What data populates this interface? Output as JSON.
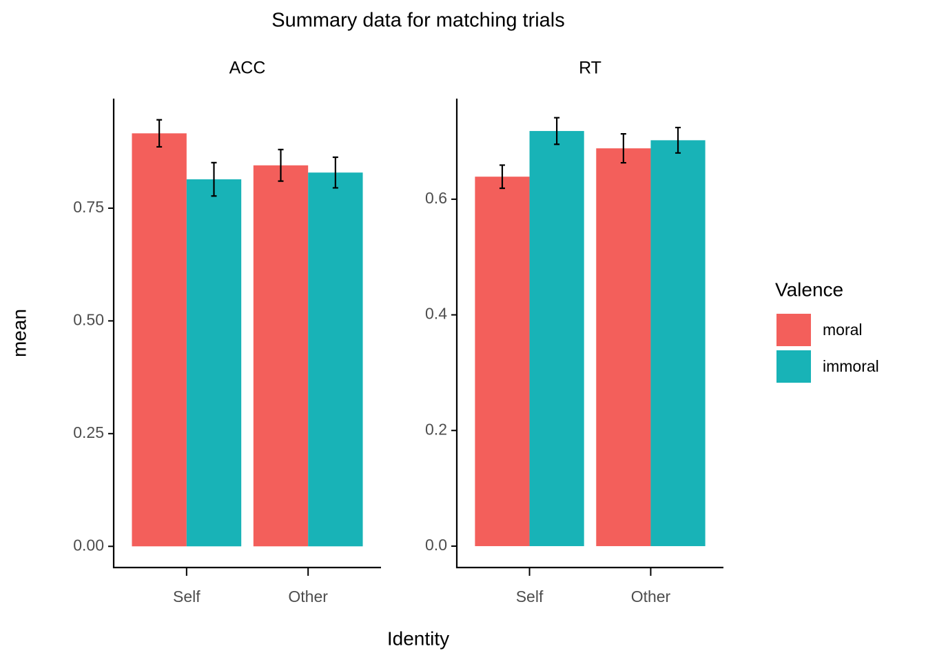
{
  "chart_data": {
    "type": "bar",
    "title": "Summary data for matching trials",
    "xlabel": "Identity",
    "ylabel": "mean",
    "legend_title": "Valence",
    "categories": [
      "Self",
      "Other"
    ],
    "series": [
      {
        "name": "moral",
        "color": "#f35f5b"
      },
      {
        "name": "immoral",
        "color": "#18b3b7"
      }
    ],
    "facets": [
      {
        "title": "ACC",
        "ylim": [
          -0.047,
          0.993
        ],
        "yticks": [
          {
            "value": 0,
            "label": "0.00"
          },
          0.25,
          {
            "value": 0.5,
            "label": "0.50"
          },
          0.75
        ],
        "series": [
          {
            "values": [
              0.916,
              0.845
            ],
            "errors": [
              0.03,
              0.035
            ]
          },
          {
            "values": [
              0.814,
              0.829
            ],
            "errors": [
              0.037,
              0.034
            ]
          }
        ]
      },
      {
        "title": "RT",
        "ylim": [
          -0.037,
          0.774
        ],
        "yticks": [
          {
            "value": 0,
            "label": "0.0"
          },
          0.2,
          0.4,
          0.6
        ],
        "series": [
          {
            "values": [
              0.639,
              0.688
            ],
            "errors": [
              0.02,
              0.025
            ]
          },
          {
            "values": [
              0.718,
              0.702
            ],
            "errors": [
              0.023,
              0.022
            ]
          }
        ]
      }
    ]
  }
}
